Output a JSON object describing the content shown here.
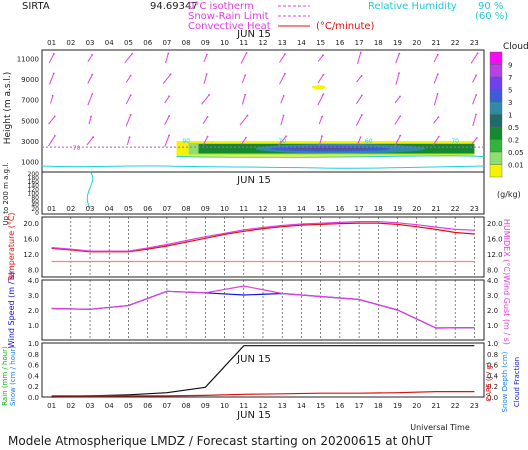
{
  "header": {
    "station": "SIRTA",
    "coord": "94.69347",
    "leg_iso": "0°C isotherm",
    "leg_sr": "Snow-Rain Limit",
    "leg_conv": "Convective Heat",
    "leg_conv_unit": "(°C/minute)",
    "leg_rh": "Relative Humidity",
    "leg_rh90": "90 %",
    "leg_rh60": "(60 %)"
  },
  "date_label": "JUN 15",
  "footer": "Modele Atmospherique LMDZ / Forecast starting on 20200615 at 0hUT",
  "universal_time_label": "Universal Time",
  "colors": {
    "magenta": "#e040e0",
    "red": "#e01010",
    "blue": "#1414e0",
    "cyan": "#20e0e0",
    "green": "#10d010"
  },
  "chart_data": [
    {
      "id": "clouds",
      "type": "heatmap",
      "title": "",
      "xlabel": "",
      "ylabel": "Height  (m a.s.l.)",
      "ylabel2": "Up to 200 m a.g.l.",
      "x_ticks": [
        "01",
        "02",
        "03",
        "04",
        "05",
        "06",
        "07",
        "08",
        "09",
        "10",
        "11",
        "12",
        "13",
        "14",
        "15",
        "16",
        "17",
        "18",
        "19",
        "20",
        "21",
        "22",
        "23"
      ],
      "y_ticks_upper": [
        "11000",
        "9000",
        "7000",
        "5000",
        "3000",
        "1000"
      ],
      "y_ticks_lower": [
        "200",
        "180",
        "160",
        "140",
        "120",
        "100",
        "80",
        "60",
        "40",
        "20",
        "0"
      ],
      "colorbar_title": "Clouds",
      "colorbar_levels": [
        "9",
        "7",
        "5",
        "3",
        "1",
        "0.5",
        "0.2",
        "0.05",
        "0.01"
      ],
      "colorbar_unit": "(g/kg)",
      "colorbar_colors": [
        "#f40af4",
        "#b840e8",
        "#7040f0",
        "#3a5cd8",
        "#2f8aa8",
        "#1f6a6a",
        "#148a30",
        "#32b43c",
        "#8ee06e",
        "#f4f400"
      ],
      "contour_labels": [
        "70",
        "90",
        "70",
        "60",
        "70"
      ],
      "cloud_layer_m": [
        1500,
        3000
      ],
      "cloud_hours": [
        7.5,
        23
      ],
      "isotherm_m": 2400
    },
    {
      "id": "temperature",
      "type": "line",
      "ylabel": "Temperature (°C)",
      "ylabel2": "HUMIDEX (°C)",
      "y_ticks": [
        "20.0",
        "16.0",
        "12.0",
        "8.0"
      ],
      "ylim": [
        6,
        21.5
      ],
      "x": [
        1,
        2,
        3,
        4,
        5,
        6,
        7,
        8,
        9,
        10,
        11,
        12,
        13,
        14,
        15,
        16,
        17,
        18,
        19,
        20,
        21,
        22,
        23
      ],
      "series": [
        {
          "name": "",
          "color": "#e01010",
          "values": [
            13.4,
            13.0,
            12.5,
            12.5,
            12.5,
            13.2,
            14.0,
            15.0,
            16.0,
            17.0,
            17.8,
            18.5,
            19.0,
            19.4,
            19.6,
            19.8,
            19.9,
            19.9,
            19.6,
            19.0,
            18.3,
            17.5,
            17.1
          ]
        },
        {
          "name": "",
          "color": "#e040e0",
          "values": [
            13.6,
            13.2,
            12.7,
            12.7,
            12.7,
            13.5,
            14.4,
            15.4,
            16.4,
            17.3,
            18.2,
            18.8,
            19.3,
            19.7,
            19.9,
            20.1,
            20.3,
            20.3,
            20.0,
            19.5,
            18.9,
            18.3,
            18.1
          ]
        },
        {
          "name": "",
          "color": "#ff8080",
          "values": [
            10,
            10,
            10,
            10,
            10,
            10,
            10,
            10,
            10,
            10,
            10,
            10,
            10,
            10,
            10,
            10,
            10,
            10,
            10,
            10,
            10,
            10,
            10
          ]
        }
      ]
    },
    {
      "id": "wind",
      "type": "line",
      "ylabel": "Wind Speed (m / s)",
      "ylabel2": "Wind Gust (m / s)",
      "y_ticks": [
        "4.0",
        "3.0",
        "2.0",
        "1.0"
      ],
      "ylim": [
        0,
        4.0
      ],
      "x": [
        1,
        3,
        5,
        7,
        9,
        11,
        13,
        15,
        17,
        19,
        21,
        23
      ],
      "series": [
        {
          "name": "",
          "color": "#1414e0",
          "values": [
            2.1,
            2.05,
            2.3,
            3.25,
            3.15,
            3.0,
            3.1,
            2.9,
            2.7,
            2.0,
            0.8,
            0.82
          ]
        },
        {
          "name": "",
          "color": "#e040e0",
          "values": [
            2.1,
            2.05,
            2.3,
            3.25,
            3.15,
            3.6,
            3.1,
            2.9,
            2.7,
            2.0,
            0.8,
            0.82
          ]
        }
      ]
    },
    {
      "id": "rain",
      "type": "line",
      "ylabel": "Rain (mm / hour)",
      "ylabel2": "Snow (cm / hour)",
      "ylabel3": "CAPE (J / g)",
      "ylabel4": "Snow Depth (cm)",
      "ylabel5": "Cloud Fraction",
      "y_ticks": [
        "1.0",
        "0.8",
        "0.6",
        "0.4",
        "0.2",
        "0.0"
      ],
      "ylim": [
        0,
        1.0
      ],
      "x": [
        1,
        3,
        5,
        7,
        9,
        11,
        13,
        15,
        17,
        19,
        21,
        23
      ],
      "series": [
        {
          "name": "",
          "color": "#101010",
          "values": [
            0.0,
            0.02,
            0.04,
            0.08,
            0.18,
            0.95,
            0.95,
            0.95,
            0.95,
            0.95,
            0.95,
            0.95
          ]
        },
        {
          "name": "",
          "color": "#e01010",
          "values": [
            0.02,
            0.02,
            0.02,
            0.02,
            0.03,
            0.05,
            0.06,
            0.07,
            0.07,
            0.08,
            0.1,
            0.1
          ]
        }
      ]
    }
  ]
}
